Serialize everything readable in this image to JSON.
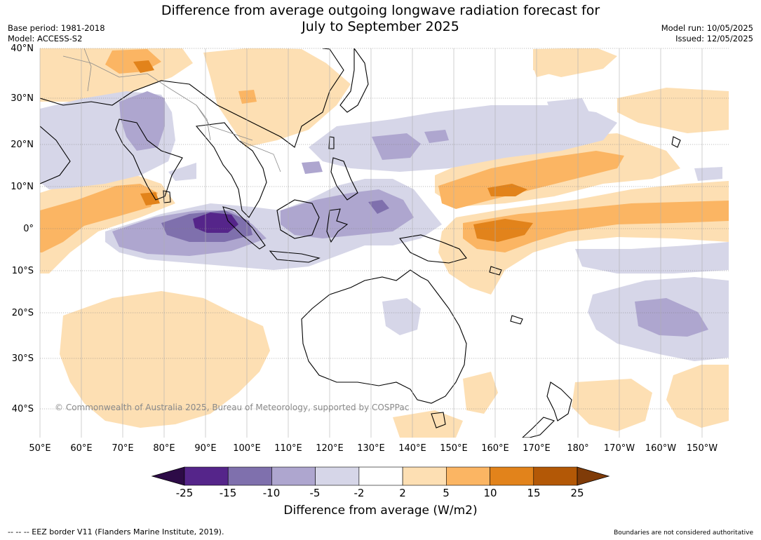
{
  "title_line1": "Difference from average outgoing longwave radiation forecast for",
  "title_line2": "July to September 2025",
  "base_period": "Base period: 1981-2018",
  "model": "Model: ACCESS-S2",
  "model_run": "Model run: 10/05/2025",
  "issued": "Issued: 12/05/2025",
  "lat_labels": [
    "40°N",
    "30°N",
    "20°N",
    "10°N",
    "0°",
    "10°S",
    "20°S",
    "30°S",
    "40°S"
  ],
  "lon_labels": [
    "50°E",
    "60°E",
    "70°E",
    "80°E",
    "90°E",
    "100°E",
    "110°E",
    "120°E",
    "130°E",
    "140°E",
    "150°E",
    "160°E",
    "170°E",
    "180°",
    "170°W",
    "160°W",
    "150°W"
  ],
  "colorbar": {
    "labels": [
      "-25",
      "-15",
      "-10",
      "-5",
      "-2",
      "2",
      "5",
      "10",
      "15",
      "25"
    ],
    "colors": [
      "#2d0b47",
      "#55258a",
      "#7f70ad",
      "#aea6cf",
      "#d6d6e8",
      "#ffffff",
      "#fddfb3",
      "#fbb563",
      "#e2831b",
      "#b35806",
      "#7f3b08"
    ],
    "title": "Difference from average (W/m2)"
  },
  "copyright": "© Commonwealth of Australia 2025, Bureau of Meteorology, supported by COSPPac",
  "eez_note": "--  --  -- EEZ border V11 (Flanders Marine Institute, 2019).",
  "boundaries_note": "Boundaries are not considered authoritative"
}
